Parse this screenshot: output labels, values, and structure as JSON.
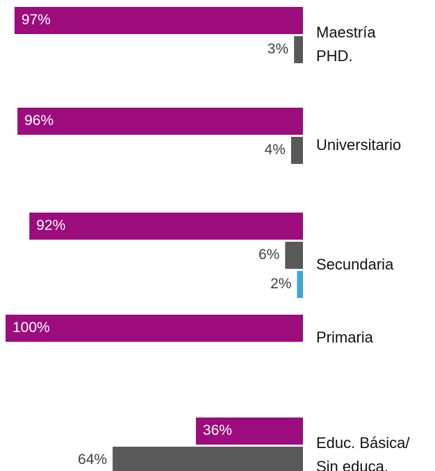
{
  "chart_data": {
    "type": "bar",
    "orientation": "horizontal",
    "categories": [
      "Maestría\nPHD.",
      "Universitario",
      "Secundaria",
      "Primaria",
      "Educ. Básica/\nSin educa."
    ],
    "xlim": [
      0,
      100
    ],
    "series": [
      {
        "color": "#9c0c7c",
        "values": [
          97,
          96,
          92,
          100,
          36
        ],
        "value_labels": [
          "97%",
          "96%",
          "92%",
          "100%",
          "36%"
        ]
      },
      {
        "color": "#595959",
        "values": [
          3,
          4,
          6,
          null,
          64
        ],
        "value_labels": [
          "3%",
          "4%",
          "6%",
          null,
          "64%"
        ]
      },
      {
        "color": "#3aa6d6",
        "values": [
          null,
          null,
          2,
          null,
          null
        ],
        "value_labels": [
          null,
          null,
          "2%",
          null,
          null
        ]
      }
    ]
  }
}
